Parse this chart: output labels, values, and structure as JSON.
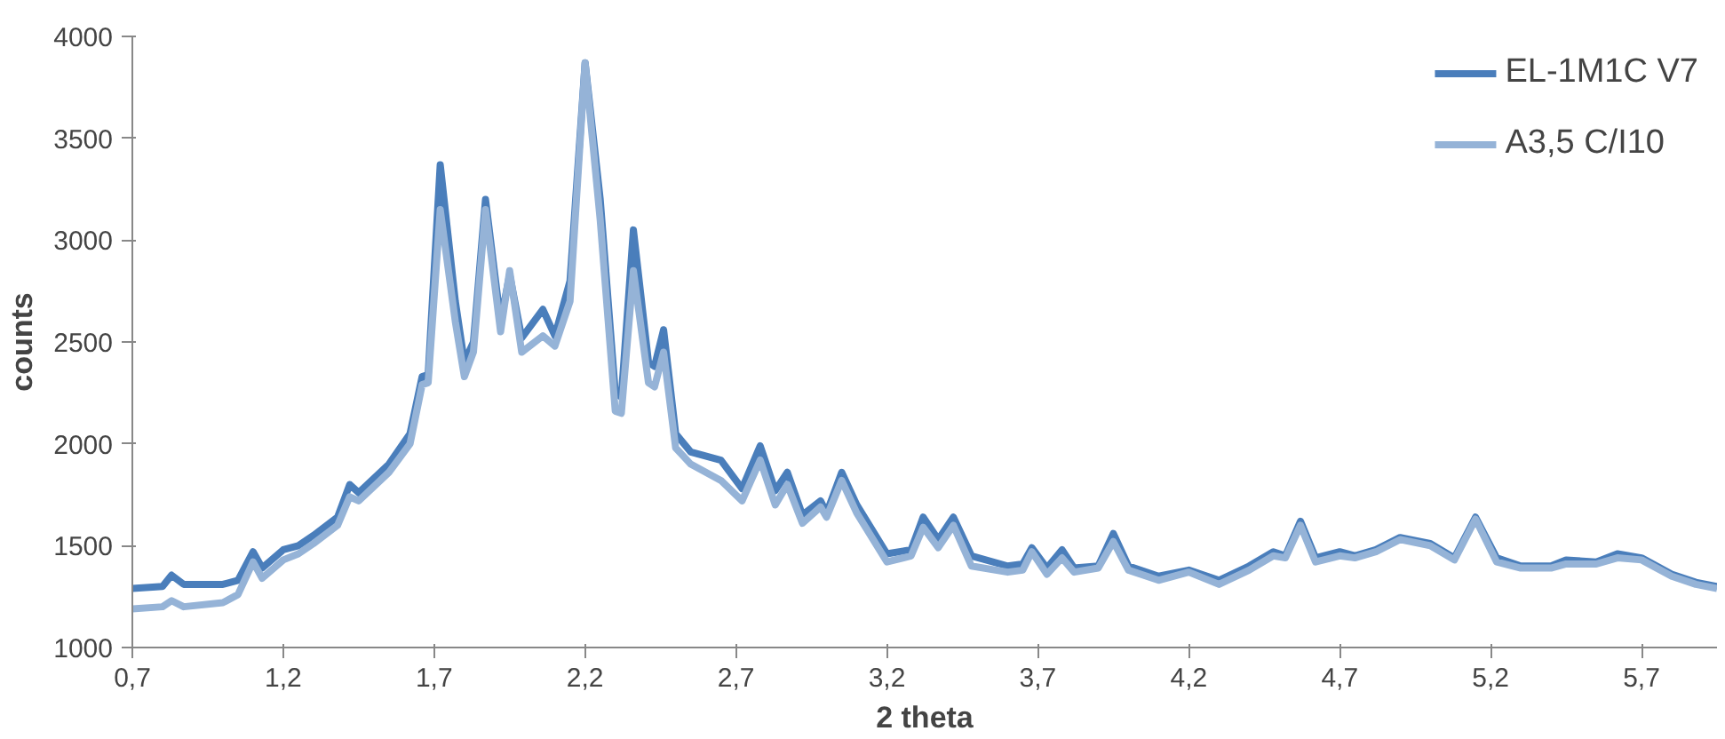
{
  "chart_data": {
    "type": "line",
    "xlabel": "2 theta",
    "ylabel": "counts",
    "x": [
      0.7,
      0.8,
      0.83,
      0.87,
      1.0,
      1.05,
      1.1,
      1.13,
      1.2,
      1.25,
      1.3,
      1.38,
      1.42,
      1.45,
      1.55,
      1.62,
      1.66,
      1.68,
      1.72,
      1.77,
      1.8,
      1.83,
      1.87,
      1.92,
      1.95,
      1.99,
      2.06,
      2.1,
      2.15,
      2.2,
      2.25,
      2.3,
      2.32,
      2.36,
      2.41,
      2.43,
      2.46,
      2.5,
      2.55,
      2.65,
      2.72,
      2.78,
      2.83,
      2.87,
      2.92,
      2.98,
      3.0,
      3.05,
      3.1,
      3.2,
      3.28,
      3.32,
      3.37,
      3.42,
      3.48,
      3.6,
      3.65,
      3.68,
      3.73,
      3.78,
      3.82,
      3.9,
      3.95,
      4.0,
      4.1,
      4.2,
      4.3,
      4.4,
      4.48,
      4.52,
      4.57,
      4.62,
      4.7,
      4.75,
      4.82,
      4.9,
      5.0,
      5.08,
      5.15,
      5.22,
      5.3,
      5.4,
      5.45,
      5.55,
      5.62,
      5.7,
      5.8,
      5.88,
      5.95
    ],
    "series": [
      {
        "name": "EL-1M1C V7",
        "color": "#4a7ebb",
        "values": [
          1290,
          1300,
          1355,
          1310,
          1310,
          1330,
          1470,
          1390,
          1480,
          1500,
          1550,
          1640,
          1800,
          1760,
          1900,
          2050,
          2330,
          2340,
          3370,
          2700,
          2400,
          2500,
          3200,
          2600,
          2830,
          2520,
          2660,
          2530,
          2800,
          3870,
          3200,
          2250,
          2230,
          3050,
          2400,
          2380,
          2560,
          2050,
          1960,
          1920,
          1780,
          1990,
          1770,
          1860,
          1650,
          1720,
          1660,
          1860,
          1700,
          1460,
          1480,
          1640,
          1530,
          1640,
          1450,
          1400,
          1410,
          1490,
          1390,
          1480,
          1390,
          1400,
          1560,
          1400,
          1350,
          1380,
          1330,
          1400,
          1470,
          1450,
          1620,
          1440,
          1470,
          1450,
          1480,
          1540,
          1510,
          1440,
          1640,
          1440,
          1400,
          1400,
          1430,
          1420,
          1460,
          1440,
          1360,
          1320,
          1300
        ]
      },
      {
        "name": "A3,5 C/I10",
        "color": "#95b3d7",
        "values": [
          1190,
          1200,
          1230,
          1200,
          1220,
          1260,
          1420,
          1340,
          1430,
          1460,
          1510,
          1600,
          1740,
          1720,
          1860,
          2000,
          2290,
          2300,
          3150,
          2600,
          2330,
          2450,
          3150,
          2550,
          2850,
          2450,
          2530,
          2480,
          2700,
          3870,
          3100,
          2160,
          2150,
          2850,
          2300,
          2280,
          2450,
          1980,
          1900,
          1820,
          1720,
          1920,
          1700,
          1800,
          1610,
          1690,
          1640,
          1820,
          1660,
          1420,
          1450,
          1590,
          1490,
          1600,
          1400,
          1370,
          1380,
          1470,
          1360,
          1440,
          1370,
          1390,
          1520,
          1380,
          1330,
          1370,
          1310,
          1380,
          1450,
          1440,
          1600,
          1420,
          1450,
          1440,
          1470,
          1530,
          1500,
          1430,
          1630,
          1420,
          1390,
          1390,
          1410,
          1410,
          1440,
          1430,
          1350,
          1310,
          1290
        ]
      }
    ],
    "xlim": [
      0.7,
      5.95
    ],
    "ylim": [
      1000,
      4000
    ],
    "xticks": [
      {
        "value": 0.7,
        "label": "0,7"
      },
      {
        "value": 1.2,
        "label": "1,2"
      },
      {
        "value": 1.7,
        "label": "1,7"
      },
      {
        "value": 2.2,
        "label": "2,2"
      },
      {
        "value": 2.7,
        "label": "2,7"
      },
      {
        "value": 3.2,
        "label": "3,2"
      },
      {
        "value": 3.7,
        "label": "3,7"
      },
      {
        "value": 4.2,
        "label": "4,2"
      },
      {
        "value": 4.7,
        "label": "4,7"
      },
      {
        "value": 5.2,
        "label": "5,2"
      },
      {
        "value": 5.7,
        "label": "5,7"
      }
    ],
    "yticks": [
      1000,
      1500,
      2000,
      2500,
      3000,
      3500,
      4000
    ],
    "grid": false,
    "legend": "top right",
    "marker": "none",
    "line_style": "solid"
  }
}
